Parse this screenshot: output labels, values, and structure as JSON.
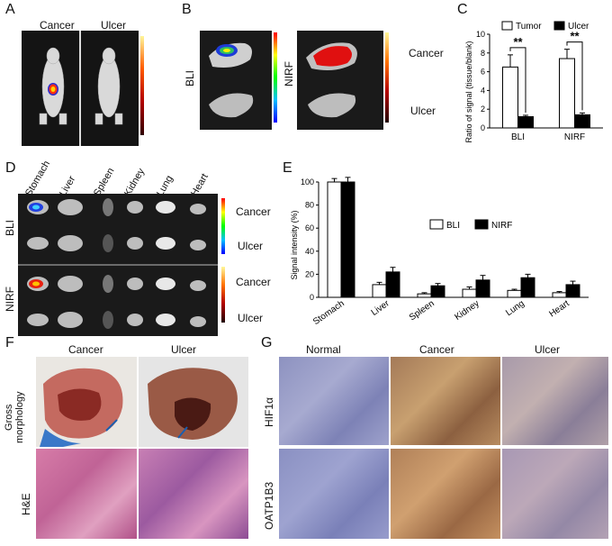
{
  "panels": {
    "a": "A",
    "b": "B",
    "c": "C",
    "d": "D",
    "e": "E",
    "f": "F",
    "g": "G"
  },
  "panel_a": {
    "left": "Cancer",
    "right": "Ulcer"
  },
  "panel_b": {
    "left_mod": "BLI",
    "right_mod": "NIRF",
    "row1": "Cancer",
    "row2": "Ulcer"
  },
  "panel_d": {
    "organs": [
      "Stomach",
      "Liver",
      "Spleen",
      "Kidney",
      "Lung",
      "Heart"
    ],
    "bli": "BLI",
    "nirf": "NIRF",
    "rows": [
      "Cancer",
      "Ulcer",
      "Cancer",
      "Ulcer"
    ]
  },
  "panel_f": {
    "col1": "Cancer",
    "col2": "Ulcer",
    "row1": "Gross\nmorphology",
    "row2": "H&E"
  },
  "panel_g": {
    "col1": "Normal",
    "col2": "Cancer",
    "col3": "Ulcer",
    "row1": "HIF1α",
    "row2": "OATP1B3"
  },
  "chart_data": [
    {
      "type": "bar",
      "title": "",
      "ylabel": "Ratio of signal (tissue/blank)",
      "categories": [
        "BLI",
        "NIRF"
      ],
      "ylim": [
        0,
        10
      ],
      "yticks": [
        "0",
        "2",
        "4",
        "6",
        "8",
        "10"
      ],
      "series": [
        {
          "name": "Tumor",
          "values": [
            6.5,
            7.4
          ],
          "errors": [
            1.3,
            1.0
          ],
          "color": "#ffffff"
        },
        {
          "name": "Ulcer",
          "values": [
            1.2,
            1.4
          ],
          "errors": [
            0.15,
            0.2
          ],
          "color": "#000000"
        }
      ],
      "annotations": [
        "**",
        "**"
      ],
      "legend": "top"
    },
    {
      "type": "bar",
      "title": "",
      "ylabel": "Signal intensity (%)",
      "categories": [
        "Stomach",
        "Liver",
        "Spleen",
        "Kidney",
        "Lung",
        "Heart"
      ],
      "ylim": [
        0,
        100
      ],
      "yticks": [
        "0",
        "20",
        "40",
        "60",
        "80",
        "100"
      ],
      "series": [
        {
          "name": "BLI",
          "values": [
            100,
            11,
            3,
            7,
            6,
            4
          ],
          "errors": [
            3,
            2,
            1,
            2,
            1,
            1
          ],
          "color": "#ffffff"
        },
        {
          "name": "NIRF",
          "values": [
            100,
            22,
            10,
            15,
            17,
            11
          ],
          "errors": [
            4,
            4,
            2,
            4,
            3,
            3
          ],
          "color": "#000000"
        }
      ],
      "legend": "top-right"
    }
  ]
}
